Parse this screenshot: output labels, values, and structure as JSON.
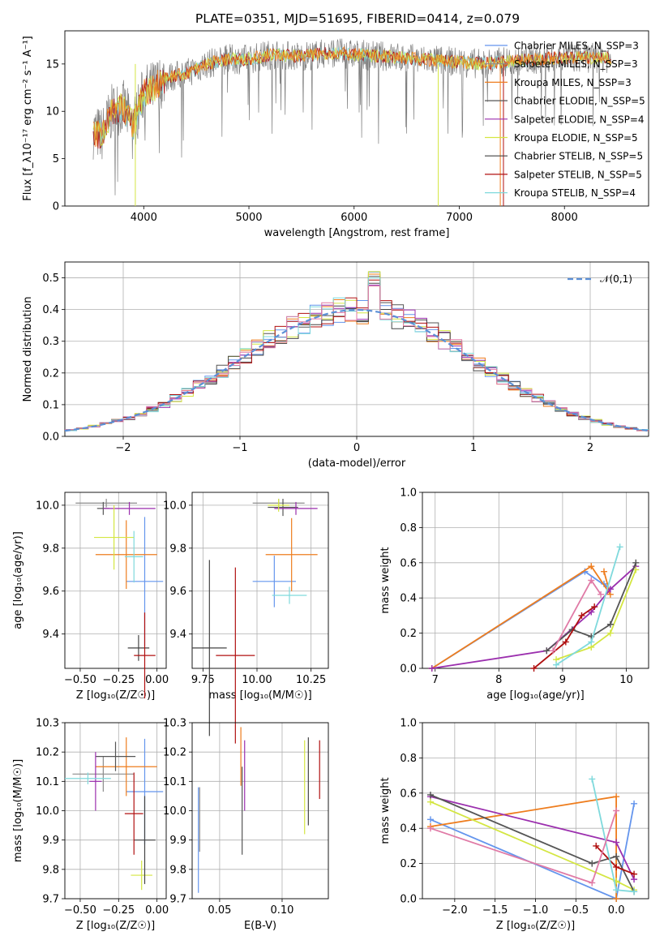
{
  "title": "PLATE=0351, MJD=51695, FIBERID=0414, z=0.079",
  "colors": [
    "#6495ed",
    "#8b8b8b",
    "#ee7d1e",
    "#555555",
    "#9b2fae",
    "#d4e642",
    "#444444",
    "#b01010",
    "#7fd9dc"
  ],
  "chart_data": [
    {
      "type": "line",
      "id": "spectrum",
      "xlabel": "wavelength [Angstrom, rest frame]",
      "ylabel": "Flux [f_λ10⁻¹⁷ erg cm⁻² s⁻¹ A⁻¹]",
      "xlim": [
        3250,
        8800
      ],
      "ylim": [
        0,
        18.5
      ],
      "xticks": [
        4000,
        5000,
        6000,
        7000,
        8000
      ],
      "yticks": [
        0,
        5,
        10,
        15
      ],
      "legend_position": "right",
      "series_names": [
        "Chabrier MILES, N_SSP=3",
        "Salpeter MILES, N_SSP=3",
        "Kroupa MILES, N_SSP=3",
        "Chabrier ELODIE, N_SSP=5",
        "Salpeter ELODIE, N_SSP=4",
        "Kroupa ELODIE, N_SSP=5",
        "Chabrier STELIB, N_SSP=5",
        "Salpeter STELIB, N_SSP=5",
        "Kroupa STELIB, N_SSP=4"
      ],
      "data_envelope": {
        "x": [
          3500,
          3600,
          3700,
          3800,
          3900,
          4000,
          4100,
          4200,
          4400,
          4600,
          4800,
          5000,
          5200,
          5500,
          5800,
          6000,
          6300,
          6600,
          6900,
          7200,
          7500,
          8000,
          8500
        ],
        "y": [
          8.0,
          7.5,
          10.0,
          10.5,
          8.5,
          12.0,
          12.5,
          13.5,
          14.0,
          15.0,
          15.5,
          15.5,
          16.0,
          15.8,
          16.2,
          16.0,
          15.8,
          15.5,
          15.3,
          15.0,
          15.3,
          15.7,
          15.6
        ]
      }
    },
    {
      "type": "step",
      "id": "residuals",
      "xlabel": "(data-model)/error",
      "ylabel": "Normed distribution",
      "xlim": [
        -2.5,
        2.5
      ],
      "ylim": [
        0,
        0.55
      ],
      "xticks": [
        -2,
        -1,
        0,
        1,
        2
      ],
      "yticks": [
        0.0,
        0.1,
        0.2,
        0.3,
        0.4,
        0.5
      ],
      "legend": "𝒩(0,1)",
      "legend_position": "top-right",
      "bin_width": 0.1
    },
    {
      "type": "scatter",
      "id": "age_vs_Z",
      "xlabel": "Z [log₁₀(Z/Z☉)]",
      "ylabel": "age  [log₁₀(age/yr)]",
      "xlim": [
        -0.6,
        0.06
      ],
      "ylim": [
        9.24,
        10.06
      ],
      "xticks": [
        -0.5,
        -0.25,
        0.0
      ],
      "yticks": [
        9.4,
        9.6,
        9.8,
        10.0
      ],
      "points": [
        {
          "x": -0.08,
          "y": 9.645,
          "xerr": 0.12,
          "yerr": 0.3
        },
        {
          "x": -0.33,
          "y": 10.01,
          "xerr": 0.2,
          "yerr": 0.02
        },
        {
          "x": -0.2,
          "y": 9.77,
          "xerr": 0.2,
          "yerr": 0.16
        },
        {
          "x": -0.35,
          "y": 9.985,
          "xerr": 0.04,
          "yerr": 0.03
        },
        {
          "x": -0.18,
          "y": 9.985,
          "xerr": 0.17,
          "yerr": 0.03
        },
        {
          "x": -0.28,
          "y": 9.85,
          "xerr": 0.13,
          "yerr": 0.15
        },
        {
          "x": -0.12,
          "y": 9.335,
          "xerr": 0.07,
          "yerr": 0.06
        },
        {
          "x": -0.08,
          "y": 9.3,
          "xerr": 0.07,
          "yerr": 0.2
        },
        {
          "x": -0.15,
          "y": 9.76,
          "xerr": 0.06,
          "yerr": 0.12
        }
      ]
    },
    {
      "type": "scatter",
      "id": "age_vs_mass",
      "xlabel": "mass [log₁₀(M/M☉)]",
      "ylabel": "",
      "xlim": [
        9.7,
        10.33
      ],
      "ylim": [
        9.24,
        10.06
      ],
      "xticks": [
        9.75,
        10.0,
        10.25
      ],
      "yticks": [
        9.4,
        9.6,
        9.8,
        10.0
      ],
      "points": [
        {
          "x": 10.08,
          "y": 9.645,
          "xerr": 0.1,
          "yerr": 0.12
        },
        {
          "x": 10.1,
          "y": 10.01,
          "xerr": 0.12,
          "yerr": 0.02
        },
        {
          "x": 10.16,
          "y": 9.77,
          "xerr": 0.12,
          "yerr": 0.17
        },
        {
          "x": 10.12,
          "y": 9.99,
          "xerr": 0.07,
          "yerr": 0.04
        },
        {
          "x": 10.18,
          "y": 9.985,
          "xerr": 0.1,
          "yerr": 0.03
        },
        {
          "x": 10.1,
          "y": 10.0,
          "xerr": 0.05,
          "yerr": 0.03
        },
        {
          "x": 9.78,
          "y": 9.335,
          "xerr": 0.08,
          "yerr": 0.41
        },
        {
          "x": 9.9,
          "y": 9.3,
          "xerr": 0.09,
          "yerr": 0.41
        },
        {
          "x": 10.15,
          "y": 9.58,
          "xerr": 0.08,
          "yerr": 0.04
        }
      ]
    },
    {
      "type": "line",
      "id": "weight_vs_age",
      "xlabel": "age  [log₁₀(age/yr)]",
      "ylabel": "mass weight",
      "xlim": [
        6.8,
        10.35
      ],
      "ylim": [
        0,
        1.0
      ],
      "xticks": [
        7,
        8,
        9,
        10
      ],
      "yticks": [
        0.0,
        0.2,
        0.4,
        0.6,
        0.8,
        1.0
      ],
      "series": [
        {
          "color": "#6495ed",
          "x": [
            6.95,
            9.35,
            9.75,
            9.65
          ],
          "y": [
            0.0,
            0.55,
            0.45,
            0.48
          ]
        },
        {
          "color": "#ee7d1e",
          "x": [
            6.95,
            9.45,
            9.75,
            9.65
          ],
          "y": [
            0.0,
            0.58,
            0.42,
            0.55
          ]
        },
        {
          "color": "#9b2fae",
          "x": [
            6.95,
            8.75,
            9.45,
            9.75,
            10.15
          ],
          "y": [
            0.0,
            0.1,
            0.32,
            0.45,
            0.58
          ]
        },
        {
          "color": "#d4e642",
          "x": [
            8.9,
            9.45,
            9.75,
            10.15
          ],
          "y": [
            0.05,
            0.12,
            0.2,
            0.56
          ]
        },
        {
          "color": "#555555",
          "x": [
            8.75,
            9.15,
            9.45,
            9.75,
            10.15
          ],
          "y": [
            0.1,
            0.22,
            0.18,
            0.25,
            0.6
          ]
        },
        {
          "color": "#b01010",
          "x": [
            8.55,
            9.05,
            9.3,
            9.5
          ],
          "y": [
            0.0,
            0.15,
            0.3,
            0.35
          ]
        },
        {
          "color": "#7fd9dc",
          "x": [
            8.9,
            9.45,
            9.9
          ],
          "y": [
            0.02,
            0.15,
            0.69
          ]
        },
        {
          "color": "#e07aa6",
          "x": [
            8.85,
            9.45,
            9.6
          ],
          "y": [
            0.1,
            0.5,
            0.42
          ]
        }
      ]
    },
    {
      "type": "scatter",
      "id": "mass_vs_Z",
      "xlabel": "Z [log₁₀(Z/Z☉)]",
      "ylabel": "mass [log₁₀(M/M☉)]",
      "xlim": [
        -0.6,
        0.06
      ],
      "ylim": [
        9.7,
        10.3
      ],
      "xticks": [
        -0.5,
        -0.25,
        0.0
      ],
      "yticks": [
        9.7,
        9.8,
        9.9,
        10.0,
        10.1,
        10.2,
        10.3
      ],
      "points": [
        {
          "x": -0.08,
          "y": 10.065,
          "xerr": 0.12,
          "yerr": 0.18
        },
        {
          "x": -0.35,
          "y": 10.125,
          "xerr": 0.2,
          "yerr": 0.06
        },
        {
          "x": -0.2,
          "y": 10.15,
          "xerr": 0.2,
          "yerr": 0.1
        },
        {
          "x": -0.27,
          "y": 10.185,
          "xerr": 0.13,
          "yerr": 0.05
        },
        {
          "x": -0.4,
          "y": 10.1,
          "xerr": 0.04,
          "yerr": 0.1
        },
        {
          "x": -0.1,
          "y": 9.78,
          "xerr": 0.07,
          "yerr": 0.05
        },
        {
          "x": -0.08,
          "y": 9.9,
          "xerr": 0.07,
          "yerr": 0.15
        },
        {
          "x": -0.15,
          "y": 9.99,
          "xerr": 0.06,
          "yerr": 0.14
        },
        {
          "x": -0.45,
          "y": 10.11,
          "xerr": 0.15,
          "yerr": 0.02
        }
      ]
    },
    {
      "type": "scatter",
      "id": "mass_vs_ebv",
      "xlabel": "E(B-V)",
      "ylabel": "",
      "xlim": [
        0.028,
        0.137
      ],
      "ylim": [
        9.7,
        10.3
      ],
      "xticks": [
        0.05,
        0.1
      ],
      "yticks": [
        9.7,
        9.8,
        9.9,
        10.0,
        10.1,
        10.2,
        10.3
      ],
      "points": [
        {
          "x": 0.033,
          "y": 9.9,
          "yerr": 0.18
        },
        {
          "x": 0.034,
          "y": 9.97,
          "yerr": 0.11
        },
        {
          "x": 0.067,
          "y": 10.185,
          "yerr": 0.1
        },
        {
          "x": 0.068,
          "y": 10.0,
          "yerr": 0.15
        },
        {
          "x": 0.07,
          "y": 10.12,
          "yerr": 0.12
        },
        {
          "x": 0.118,
          "y": 10.08,
          "yerr": 0.16
        },
        {
          "x": 0.121,
          "y": 10.1,
          "yerr": 0.15
        },
        {
          "x": 0.13,
          "y": 10.14,
          "yerr": 0.1
        }
      ]
    },
    {
      "type": "line",
      "id": "weight_vs_Z",
      "xlabel": "Z [log₁₀(Z/Z☉)]",
      "ylabel": "mass weight",
      "xlim": [
        -2.4,
        0.4
      ],
      "ylim": [
        0,
        1.0
      ],
      "xticks": [
        -2.0,
        -1.5,
        -1.0,
        -0.5,
        0.0
      ],
      "yticks": [
        0.0,
        0.2,
        0.4,
        0.6,
        0.8,
        1.0
      ],
      "series": [
        {
          "color": "#6495ed",
          "x": [
            -2.3,
            0.0,
            0.22
          ],
          "y": [
            0.45,
            0.0,
            0.54
          ]
        },
        {
          "color": "#ee7d1e",
          "x": [
            -2.3,
            0.0,
            0.0
          ],
          "y": [
            0.41,
            0.58,
            0.0
          ]
        },
        {
          "color": "#9b2fae",
          "x": [
            -2.3,
            0.0,
            0.22
          ],
          "y": [
            0.58,
            0.32,
            0.11
          ]
        },
        {
          "color": "#d4e642",
          "x": [
            -2.3,
            0.0,
            0.22
          ],
          "y": [
            0.55,
            0.1,
            0.05
          ]
        },
        {
          "color": "#555555",
          "x": [
            -2.3,
            -0.3,
            0.0,
            0.22
          ],
          "y": [
            0.59,
            0.2,
            0.24,
            0.04
          ]
        },
        {
          "color": "#b01010",
          "x": [
            -0.25,
            0.0,
            0.22
          ],
          "y": [
            0.3,
            0.18,
            0.14
          ]
        },
        {
          "color": "#7fd9dc",
          "x": [
            -0.3,
            0.0,
            0.22
          ],
          "y": [
            0.68,
            0.05,
            0.04
          ]
        },
        {
          "color": "#e07aa6",
          "x": [
            -2.3,
            -0.3,
            0.0
          ],
          "y": [
            0.4,
            0.09,
            0.5
          ]
        }
      ]
    }
  ]
}
